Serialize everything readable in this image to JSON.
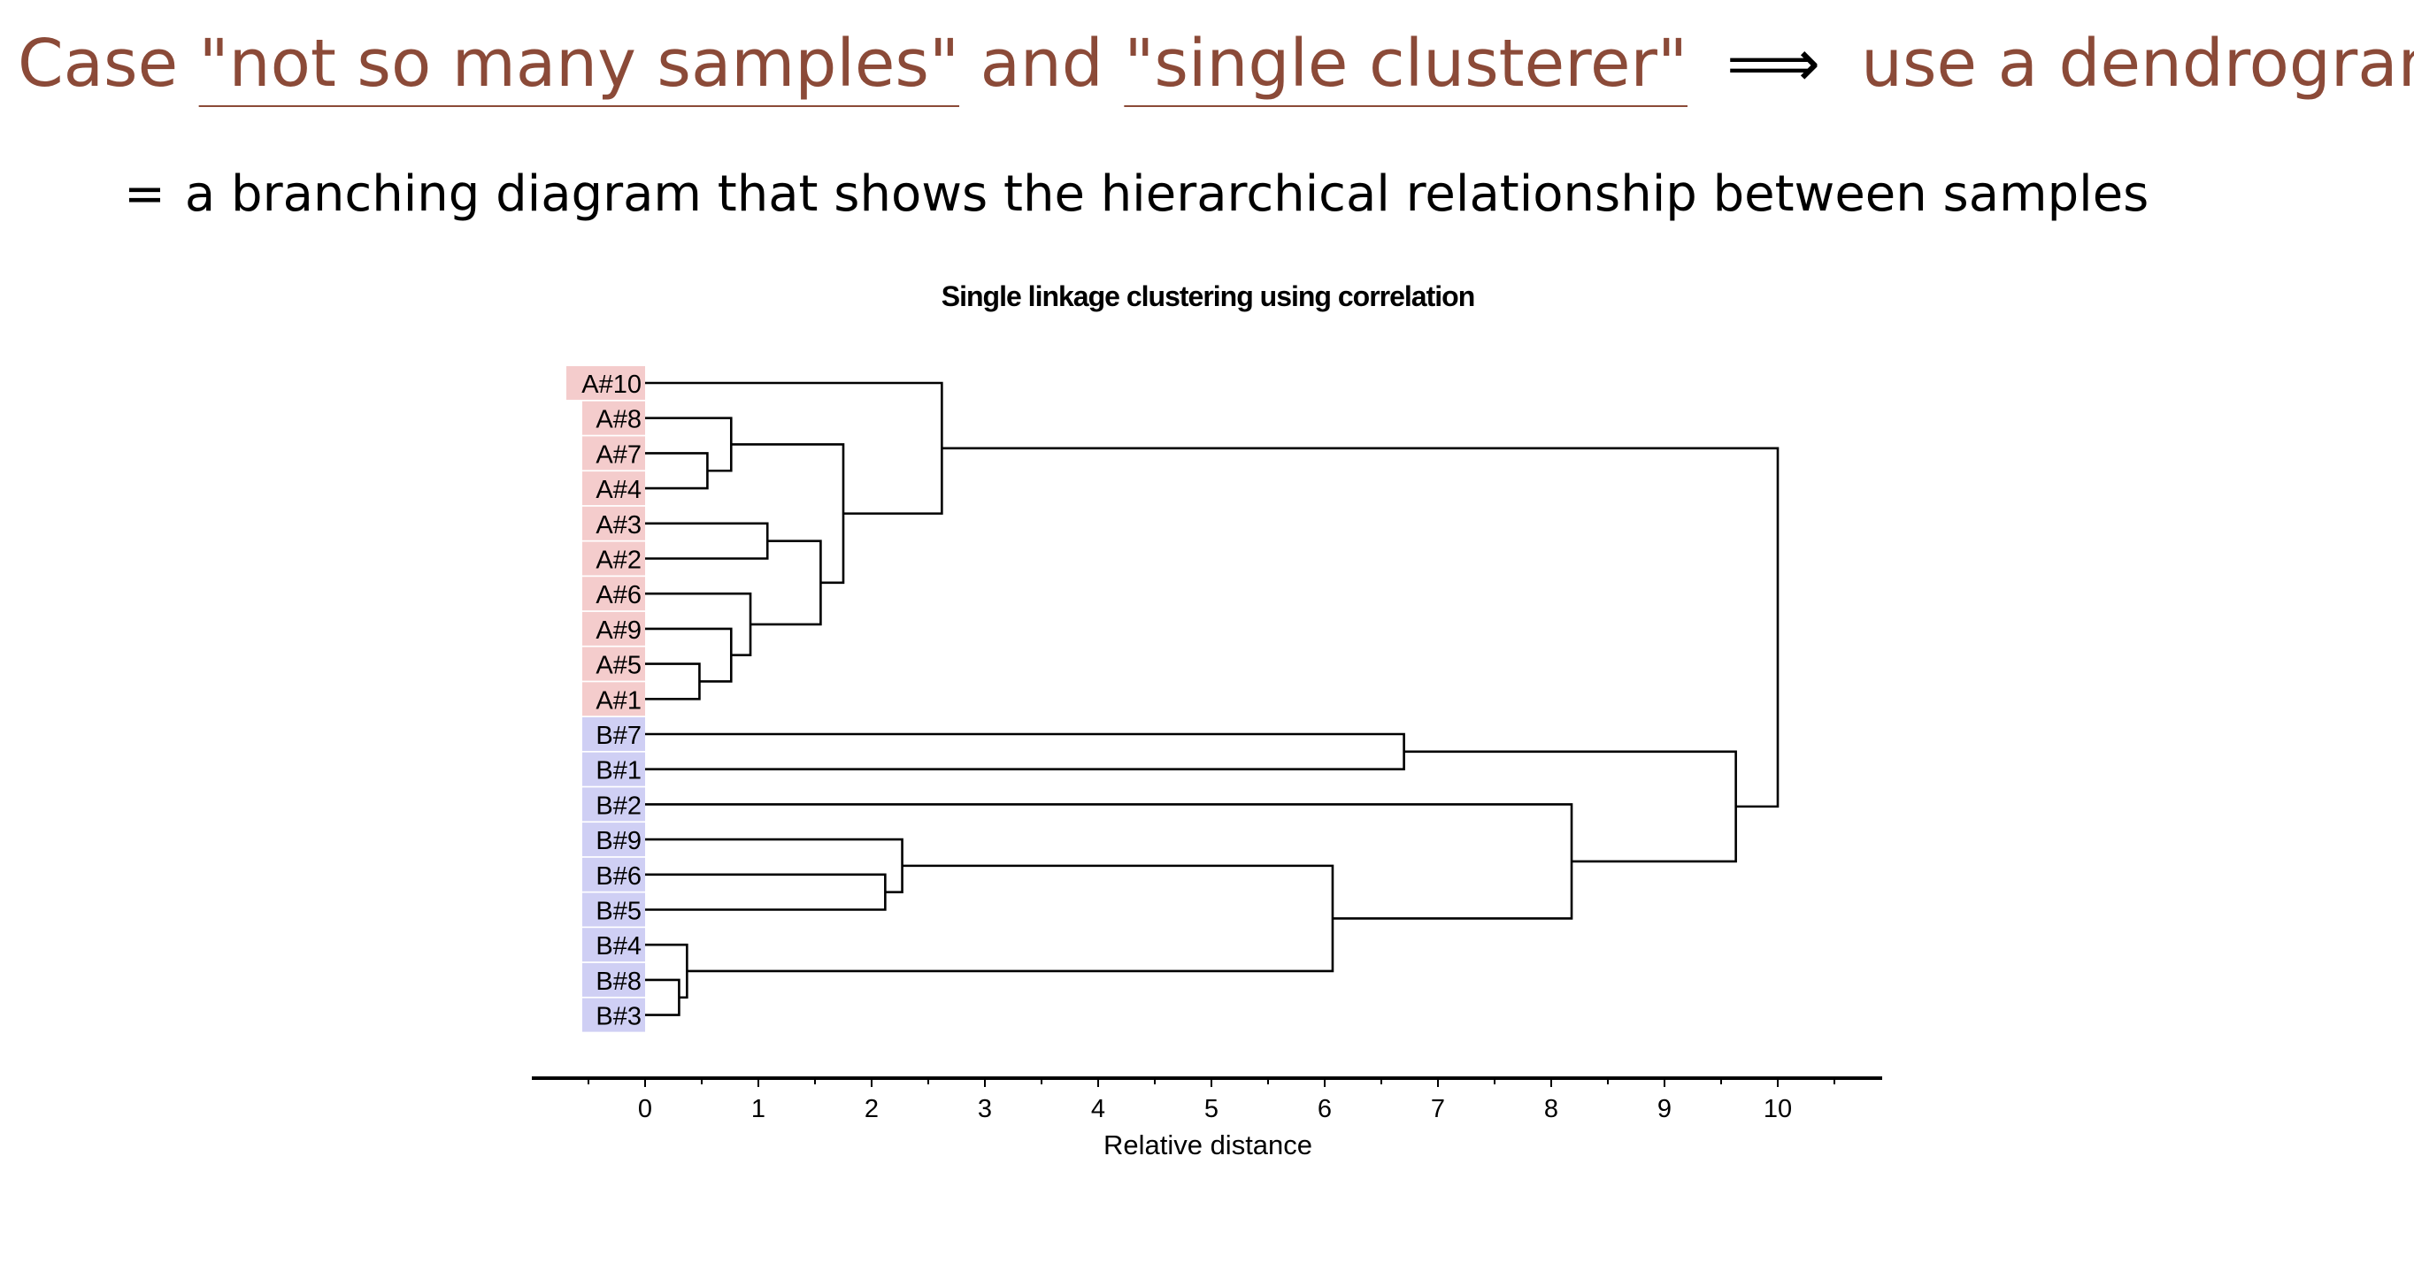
{
  "heading": {
    "case_word": "Case",
    "term1": "\"not so many samples\"",
    "and_word": "and",
    "term2": "\"single clusterer\"",
    "arrow": "⟹",
    "conclusion": "use a dendrogram"
  },
  "subtitle": {
    "equals": "=",
    "text": "a branching diagram that shows the hierarchical relationship between samples"
  },
  "colors": {
    "accent": "#8b4a38",
    "group_a_bg": "#f4cccc",
    "group_b_bg": "#cfcff4",
    "line": "#000000"
  },
  "chart_data": {
    "type": "dendrogram",
    "title": "Single linkage clustering using correlation",
    "xlabel": "Relative distance",
    "xlim": [
      -1,
      11
    ],
    "ticks": [
      0,
      1,
      2,
      3,
      4,
      5,
      6,
      7,
      8,
      9,
      10
    ],
    "leaves": [
      {
        "label": "A#10",
        "group": "A"
      },
      {
        "label": "A#8",
        "group": "A"
      },
      {
        "label": "A#7",
        "group": "A"
      },
      {
        "label": "A#4",
        "group": "A"
      },
      {
        "label": "A#3",
        "group": "A"
      },
      {
        "label": "A#2",
        "group": "A"
      },
      {
        "label": "A#6",
        "group": "A"
      },
      {
        "label": "A#9",
        "group": "A"
      },
      {
        "label": "A#5",
        "group": "A"
      },
      {
        "label": "A#1",
        "group": "A"
      },
      {
        "label": "B#7",
        "group": "B"
      },
      {
        "label": "B#1",
        "group": "B"
      },
      {
        "label": "B#2",
        "group": "B"
      },
      {
        "label": "B#9",
        "group": "B"
      },
      {
        "label": "B#6",
        "group": "B"
      },
      {
        "label": "B#5",
        "group": "B"
      },
      {
        "label": "B#4",
        "group": "B"
      },
      {
        "label": "B#8",
        "group": "B"
      },
      {
        "label": "B#3",
        "group": "B"
      }
    ],
    "merges": [
      {
        "a": "A#7",
        "b": "A#4",
        "height": 0.55
      },
      {
        "a": "A#8",
        "b": 0,
        "height": 0.76
      },
      {
        "a": "A#3",
        "b": "A#2",
        "height": 1.08
      },
      {
        "a": "A#5",
        "b": "A#1",
        "height": 0.48
      },
      {
        "a": "A#9",
        "b": 3,
        "height": 0.76
      },
      {
        "a": "A#6",
        "b": 4,
        "height": 0.93
      },
      {
        "a": 2,
        "b": 5,
        "height": 1.55
      },
      {
        "a": 1,
        "b": 6,
        "height": 1.75
      },
      {
        "a": "A#10",
        "b": 7,
        "height": 2.62
      },
      {
        "a": "B#7",
        "b": "B#1",
        "height": 6.7
      },
      {
        "a": "B#6",
        "b": "B#5",
        "height": 2.12
      },
      {
        "a": "B#9",
        "b": 10,
        "height": 2.27
      },
      {
        "a": "B#8",
        "b": "B#3",
        "height": 0.3
      },
      {
        "a": "B#4",
        "b": 12,
        "height": 0.37
      },
      {
        "a": 11,
        "b": 13,
        "height": 6.07
      },
      {
        "a": "B#2",
        "b": 14,
        "height": 8.18
      },
      {
        "a": 9,
        "b": 15,
        "height": 9.63
      },
      {
        "a": 8,
        "b": 16,
        "height": 10.0
      }
    ]
  }
}
